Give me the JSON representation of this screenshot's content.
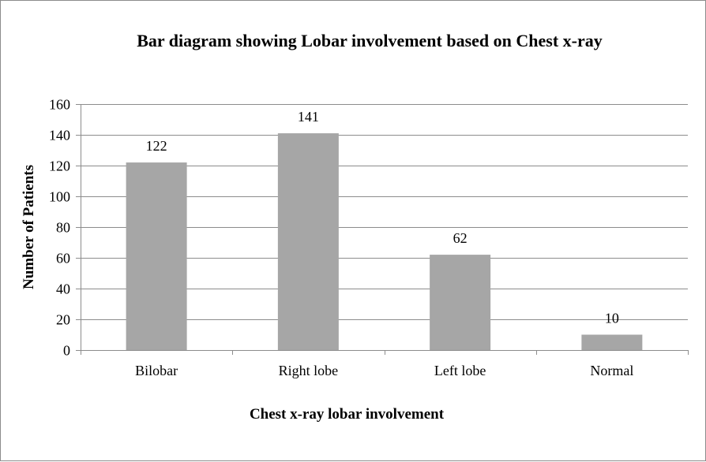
{
  "chart_data": {
    "type": "bar",
    "title": "Bar diagram showing Lobar involvement based on Chest x-ray",
    "xlabel": "Chest x-ray lobar involvement",
    "ylabel": "Number of Patients",
    "categories": [
      "Bilobar",
      "Right lobe",
      "Left lobe",
      "Normal"
    ],
    "values": [
      122,
      141,
      62,
      10
    ],
    "data_labels": [
      "122",
      "141",
      "62",
      "10"
    ],
    "ylim": [
      0,
      160
    ],
    "yticks": [
      0,
      20,
      40,
      60,
      80,
      100,
      120,
      140,
      160
    ],
    "grid": true,
    "legend": "none",
    "colors": {
      "bar": "#a6a6a6",
      "grid": "#8c8c8c",
      "axis": "#8c8c8c"
    }
  }
}
